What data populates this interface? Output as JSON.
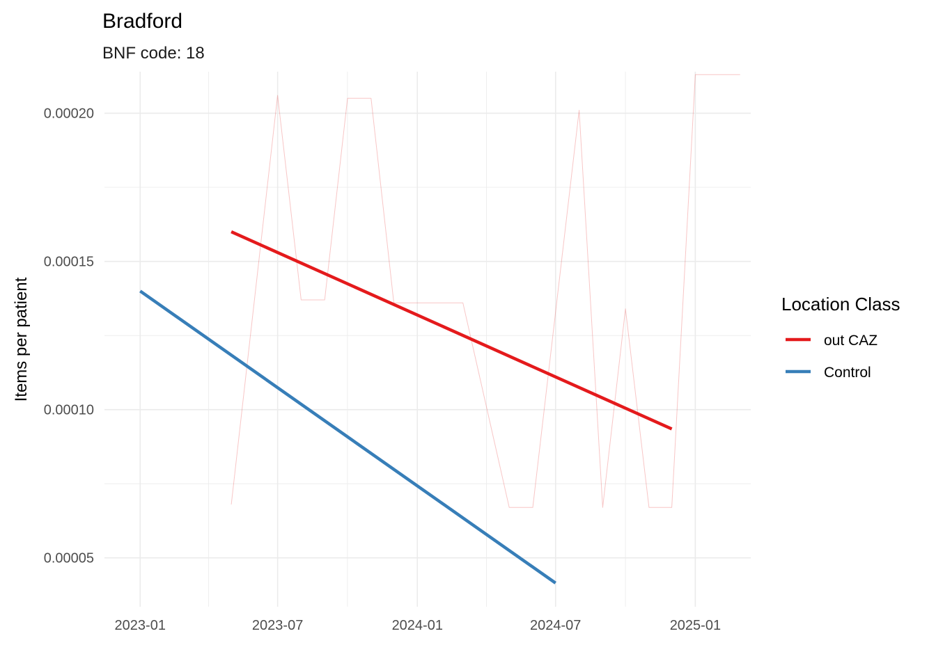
{
  "chart_data": {
    "type": "line",
    "title": "Bradford",
    "subtitle": "BNF code: 18",
    "xlabel": "",
    "ylabel": "Items per patient",
    "x_ticks": [
      "2023-01",
      "2023-07",
      "2024-01",
      "2024-07",
      "2025-01"
    ],
    "y_ticks": [
      "0.00005",
      "0.00010",
      "0.00015",
      "0.00020"
    ],
    "xlim": [
      "2022-11-15",
      "2025-03-15"
    ],
    "ylim": [
      3.35e-05,
      0.000214
    ],
    "grid": true,
    "legend": {
      "title": "Location Class",
      "position": "right",
      "entries": [
        {
          "label": "out CAZ",
          "color": "#E41A1C"
        },
        {
          "label": "Control",
          "color": "#377EB8"
        }
      ]
    },
    "series": [
      {
        "type": "raw",
        "legend_entry": 0,
        "color": "#E41A1C",
        "points": [
          [
            "2023-05-01",
            6.8e-05
          ],
          [
            "2023-07-01",
            0.000206
          ],
          [
            "2023-08-01",
            0.000137
          ],
          [
            "2023-09-01",
            0.000137
          ],
          [
            "2023-10-01",
            0.000205
          ],
          [
            "2023-11-01",
            0.000205
          ],
          [
            "2023-12-01",
            0.000136
          ],
          [
            "2024-01-01",
            0.000136
          ],
          [
            "2024-02-01",
            0.000136
          ],
          [
            "2024-03-01",
            0.000136
          ],
          [
            "2024-05-01",
            6.7e-05
          ],
          [
            "2024-06-01",
            6.7e-05
          ],
          [
            "2024-08-01",
            0.000201
          ],
          [
            "2024-09-01",
            6.7e-05
          ],
          [
            "2024-10-01",
            0.000134
          ],
          [
            "2024-11-01",
            6.7e-05
          ],
          [
            "2024-12-01",
            6.7e-05
          ],
          [
            "2025-01-01",
            0.000213
          ],
          [
            "2025-03-01",
            0.000213
          ]
        ]
      },
      {
        "type": "trend",
        "legend_entry": 0,
        "color": "#E41A1C",
        "points": [
          [
            "2023-05-01",
            0.00016
          ],
          [
            "2024-12-01",
            9.35e-05
          ]
        ]
      },
      {
        "type": "trend",
        "legend_entry": 1,
        "color": "#377EB8",
        "points": [
          [
            "2023-01-01",
            0.00014
          ],
          [
            "2024-07-01",
            4.15e-05
          ]
        ]
      }
    ]
  }
}
